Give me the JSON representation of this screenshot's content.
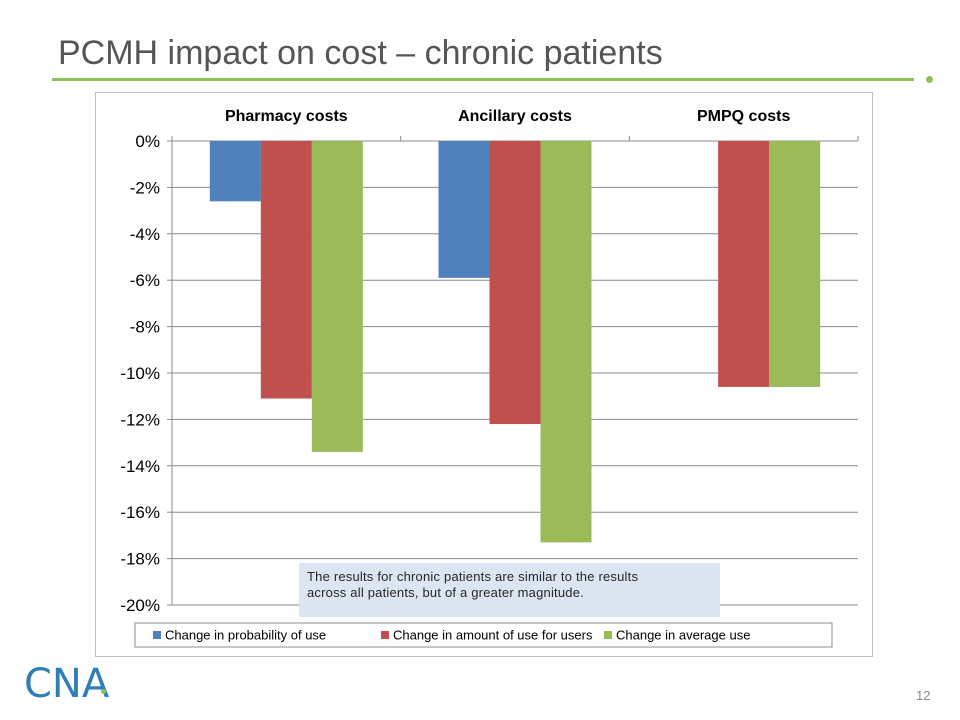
{
  "slide": {
    "title": "PCMH impact on cost – chronic patients",
    "page_number": "12",
    "logo_text": "CNA",
    "callout_line1": "The results for chronic patients are similar to the results",
    "callout_line2": "across all patients, but of a greater magnitude."
  },
  "colors": {
    "accent": "#8dc153",
    "logo": "#2e7fb8",
    "callout_bg": "#dce6f2"
  },
  "chart_data": {
    "type": "bar",
    "categories": [
      "Pharmacy costs",
      "Ancillary costs",
      "PMPQ costs"
    ],
    "series": [
      {
        "name": "Change in probability of use",
        "color": "#4f81bd",
        "values": [
          -2.6,
          -5.9,
          null
        ]
      },
      {
        "name": "Change in amount of use for users",
        "color": "#c0504d",
        "values": [
          -11.1,
          -12.2,
          -10.6
        ]
      },
      {
        "name": "Change in average use",
        "color": "#9bbb59",
        "values": [
          -13.4,
          -17.3,
          -10.6
        ]
      }
    ],
    "ylim": [
      -20,
      0
    ],
    "yticks": [
      0,
      -2,
      -4,
      -6,
      -8,
      -10,
      -12,
      -14,
      -16,
      -18,
      -20
    ],
    "ytick_labels": [
      "0%",
      "-2%",
      "-4%",
      "-6%",
      "-8%",
      "-10%",
      "-12%",
      "-14%",
      "-16%",
      "-18%",
      "-20%"
    ],
    "grid": true,
    "legend_position": "bottom",
    "category_labels_position": "top"
  }
}
